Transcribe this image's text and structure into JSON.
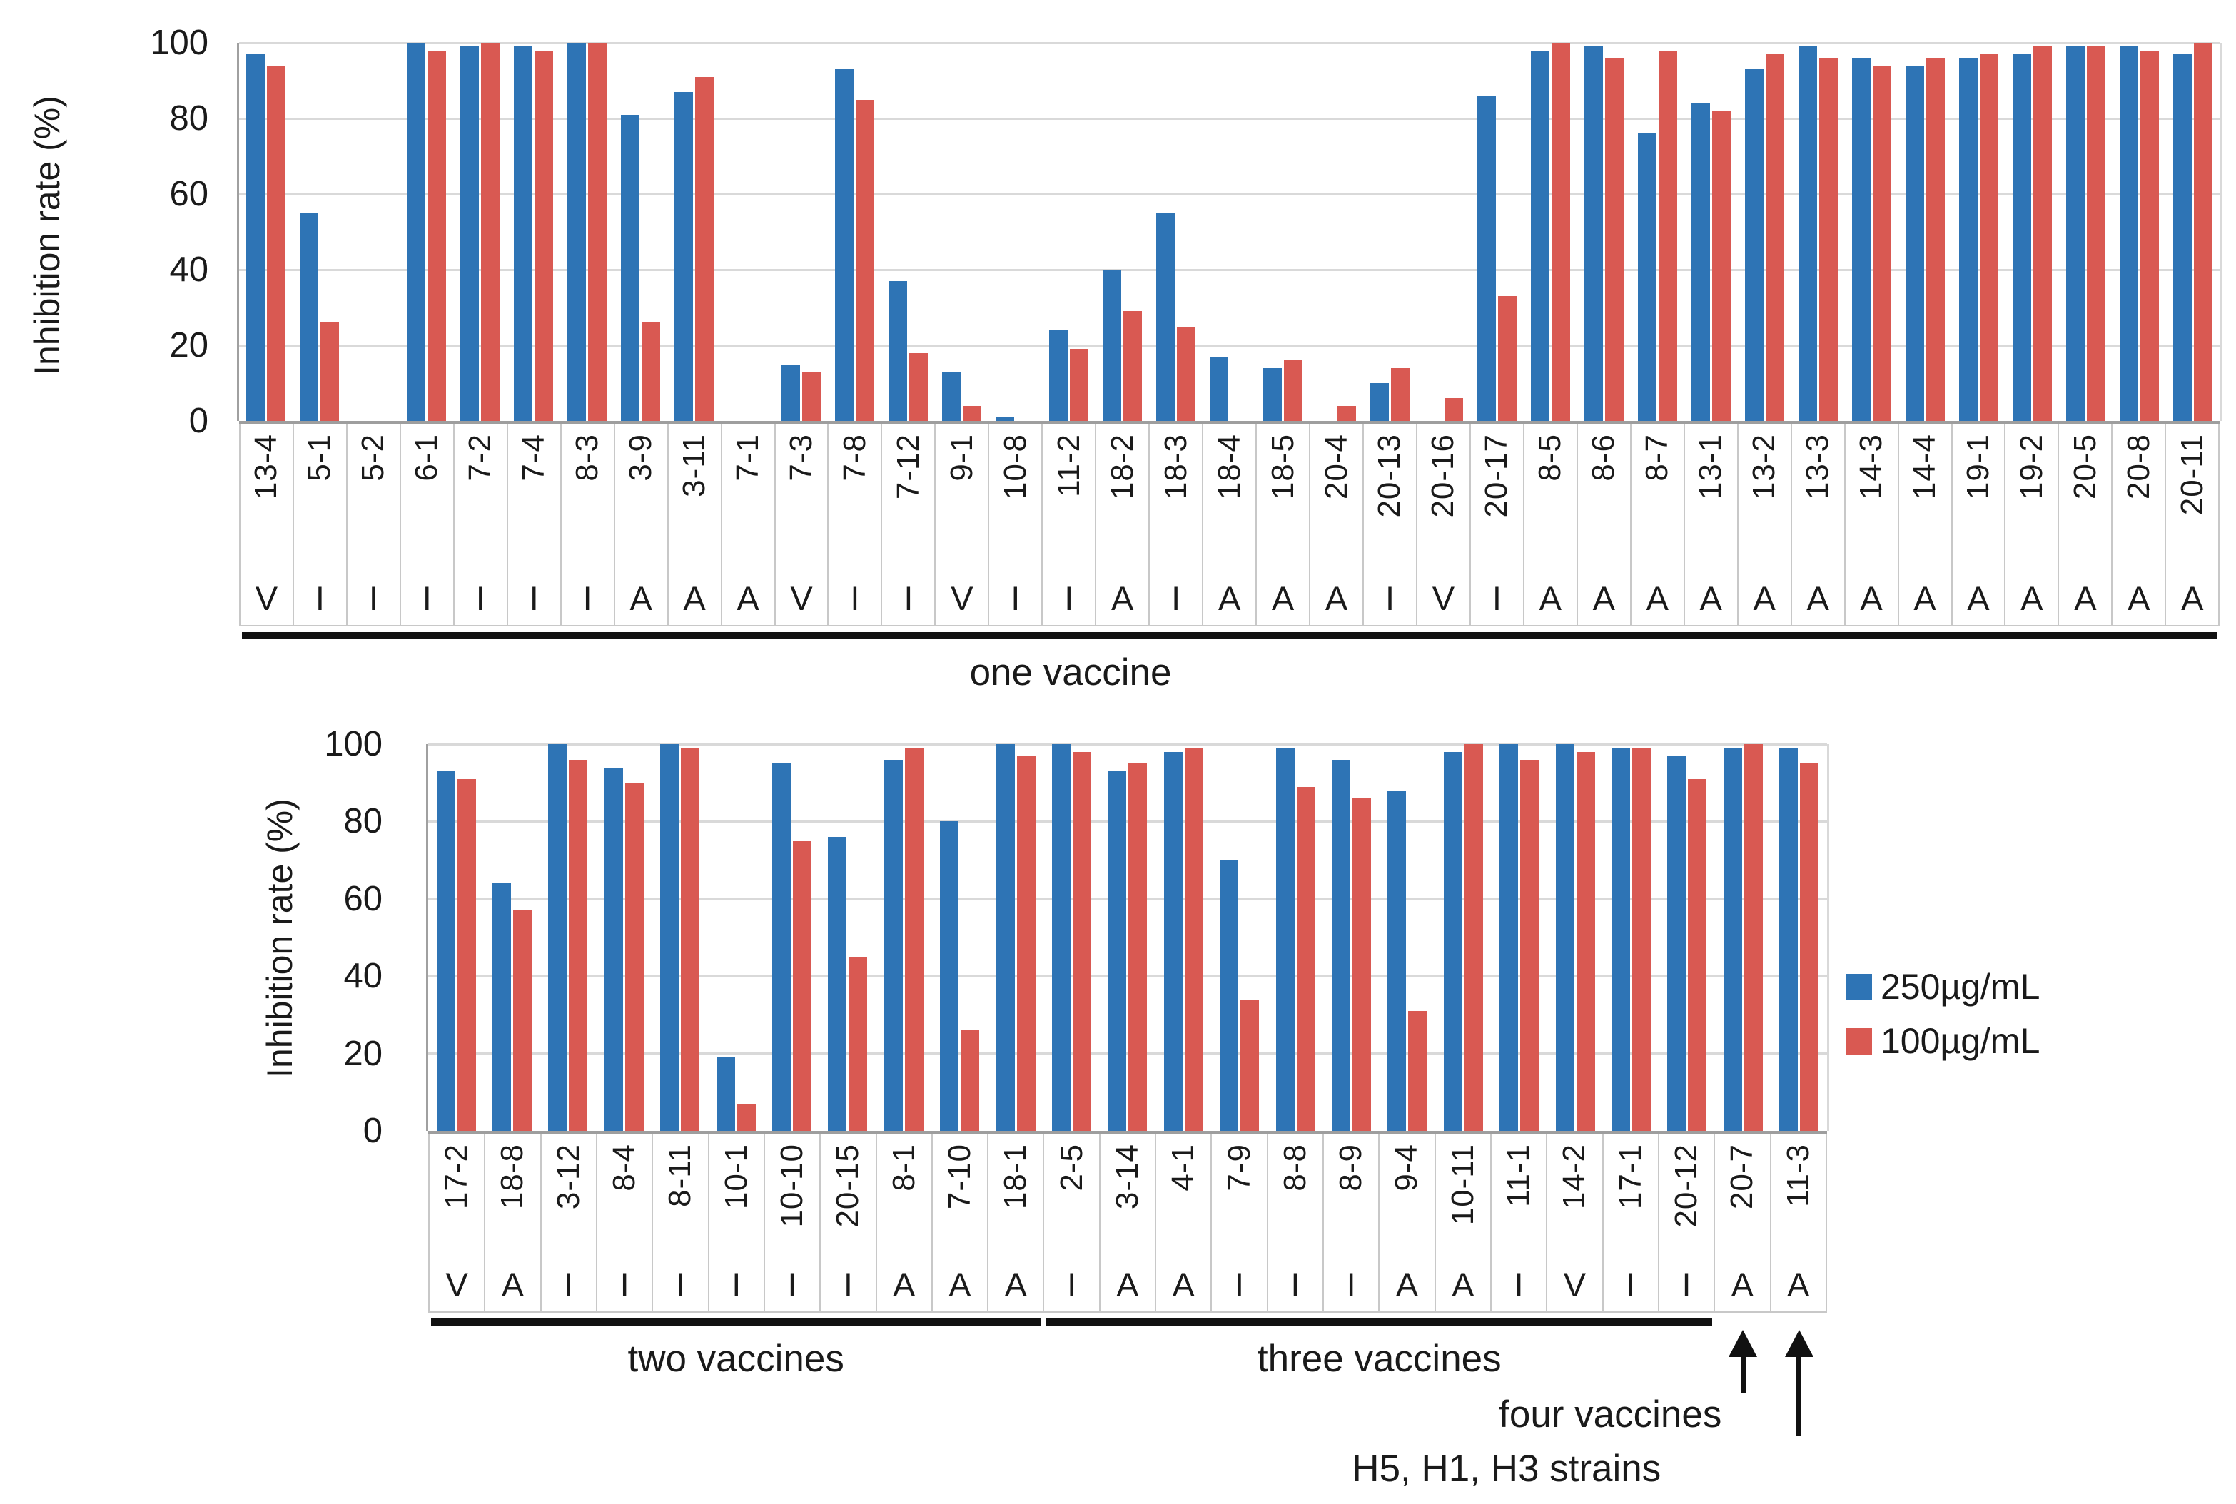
{
  "figure": {
    "description": "Grouped bar chart figure with two panels showing inhibition rates of samples tested at two concentrations"
  },
  "colors": {
    "series_250": "#2e74b5",
    "series_100": "#d95952",
    "gridline": "#d9d9d9",
    "axis": "#a0a0a0",
    "cell_border": "#c8c8c8",
    "annotation": "#111111"
  },
  "legend": {
    "items": [
      {
        "label": "250µg/mL",
        "color": "#2e74b5"
      },
      {
        "label": "100µg/mL",
        "color": "#d95952"
      }
    ]
  },
  "chart_data": [
    {
      "type": "bar",
      "panel": "top",
      "ylabel": "Inhibition rate (%)",
      "ylim": [
        0,
        100
      ],
      "yticks": [
        0,
        20,
        40,
        60,
        80,
        100
      ],
      "grid": true,
      "series_names": [
        "250µg/mL",
        "100µg/mL"
      ],
      "categories": [
        "13-4",
        "5-1",
        "5-2",
        "6-1",
        "7-2",
        "7-4",
        "8-3",
        "3-9",
        "3-11",
        "7-1",
        "7-3",
        "7-8",
        "7-12",
        "9-1",
        "10-8",
        "11-2",
        "18-2",
        "18-3",
        "18-4",
        "18-5",
        "20-4",
        "20-13",
        "20-16",
        "20-17",
        "8-5",
        "8-6",
        "8-7",
        "13-1",
        "13-2",
        "13-3",
        "14-3",
        "14-4",
        "19-1",
        "19-2",
        "20-5",
        "20-8",
        "20-11"
      ],
      "letters": [
        "V",
        "I",
        "I",
        "I",
        "I",
        "I",
        "I",
        "A",
        "A",
        "A",
        "V",
        "I",
        "I",
        "V",
        "I",
        "I",
        "A",
        "I",
        "A",
        "A",
        "A",
        "I",
        "V",
        "I",
        "A",
        "A",
        "A",
        "A",
        "A",
        "A",
        "A",
        "A",
        "A",
        "A",
        "A",
        "A",
        "A"
      ],
      "series": [
        {
          "name": "250µg/mL",
          "values": [
            97,
            55,
            0,
            100,
            99,
            99,
            100,
            81,
            87,
            0,
            15,
            93,
            37,
            13,
            1,
            24,
            40,
            55,
            17,
            14,
            0,
            10,
            0,
            86,
            98,
            99,
            76,
            84,
            93,
            99,
            96,
            94,
            96,
            97,
            99,
            99,
            97
          ]
        },
        {
          "name": "100µg/mL",
          "values": [
            94,
            26,
            0,
            98,
            100,
            98,
            100,
            26,
            91,
            0,
            13,
            85,
            18,
            4,
            0,
            19,
            29,
            25,
            0,
            16,
            4,
            14,
            6,
            33,
            100,
            96,
            98,
            82,
            97,
            96,
            94,
            96,
            97,
            99,
            99,
            98,
            100
          ]
        }
      ],
      "groups": [
        {
          "label": "one vaccine",
          "from": 0,
          "to": 36
        }
      ]
    },
    {
      "type": "bar",
      "panel": "bottom",
      "ylabel": "Inhibition rate (%)",
      "ylim": [
        0,
        100
      ],
      "yticks": [
        0,
        20,
        40,
        60,
        80,
        100
      ],
      "grid": true,
      "legend_position": "right",
      "series_names": [
        "250µg/mL",
        "100µg/mL"
      ],
      "categories": [
        "17-2",
        "18-8",
        "3-12",
        "8-4",
        "8-11",
        "10-1",
        "10-10",
        "20-15",
        "8-1",
        "7-10",
        "18-1",
        "2-5",
        "3-14",
        "4-1",
        "7-9",
        "8-8",
        "8-9",
        "9-4",
        "10-11",
        "11-1",
        "14-2",
        "17-1",
        "20-12",
        "20-7",
        "11-3"
      ],
      "letters": [
        "V",
        "A",
        "I",
        "I",
        "I",
        "I",
        "I",
        "I",
        "A",
        "A",
        "A",
        "I",
        "A",
        "A",
        "I",
        "I",
        "I",
        "A",
        "A",
        "I",
        "V",
        "I",
        "I",
        "A",
        "A"
      ],
      "series": [
        {
          "name": "250µg/mL",
          "values": [
            93,
            64,
            100,
            94,
            100,
            19,
            95,
            76,
            96,
            80,
            100,
            100,
            93,
            98,
            70,
            99,
            96,
            88,
            98,
            100,
            100,
            99,
            97,
            99,
            99
          ]
        },
        {
          "name": "100µg/mL",
          "values": [
            91,
            57,
            96,
            90,
            99,
            7,
            75,
            45,
            99,
            26,
            97,
            98,
            95,
            99,
            34,
            89,
            86,
            31,
            100,
            96,
            98,
            99,
            91,
            100,
            95
          ]
        }
      ],
      "groups": [
        {
          "label": "two vaccines",
          "from": 0,
          "to": 10
        },
        {
          "label": "three vaccines",
          "from": 11,
          "to": 22
        }
      ],
      "annotations": [
        {
          "label": "four vaccines",
          "category": "20-7",
          "arrow": "short"
        },
        {
          "label": "H5, H1, H3 strains",
          "category": "11-3",
          "arrow": "long"
        }
      ]
    }
  ]
}
